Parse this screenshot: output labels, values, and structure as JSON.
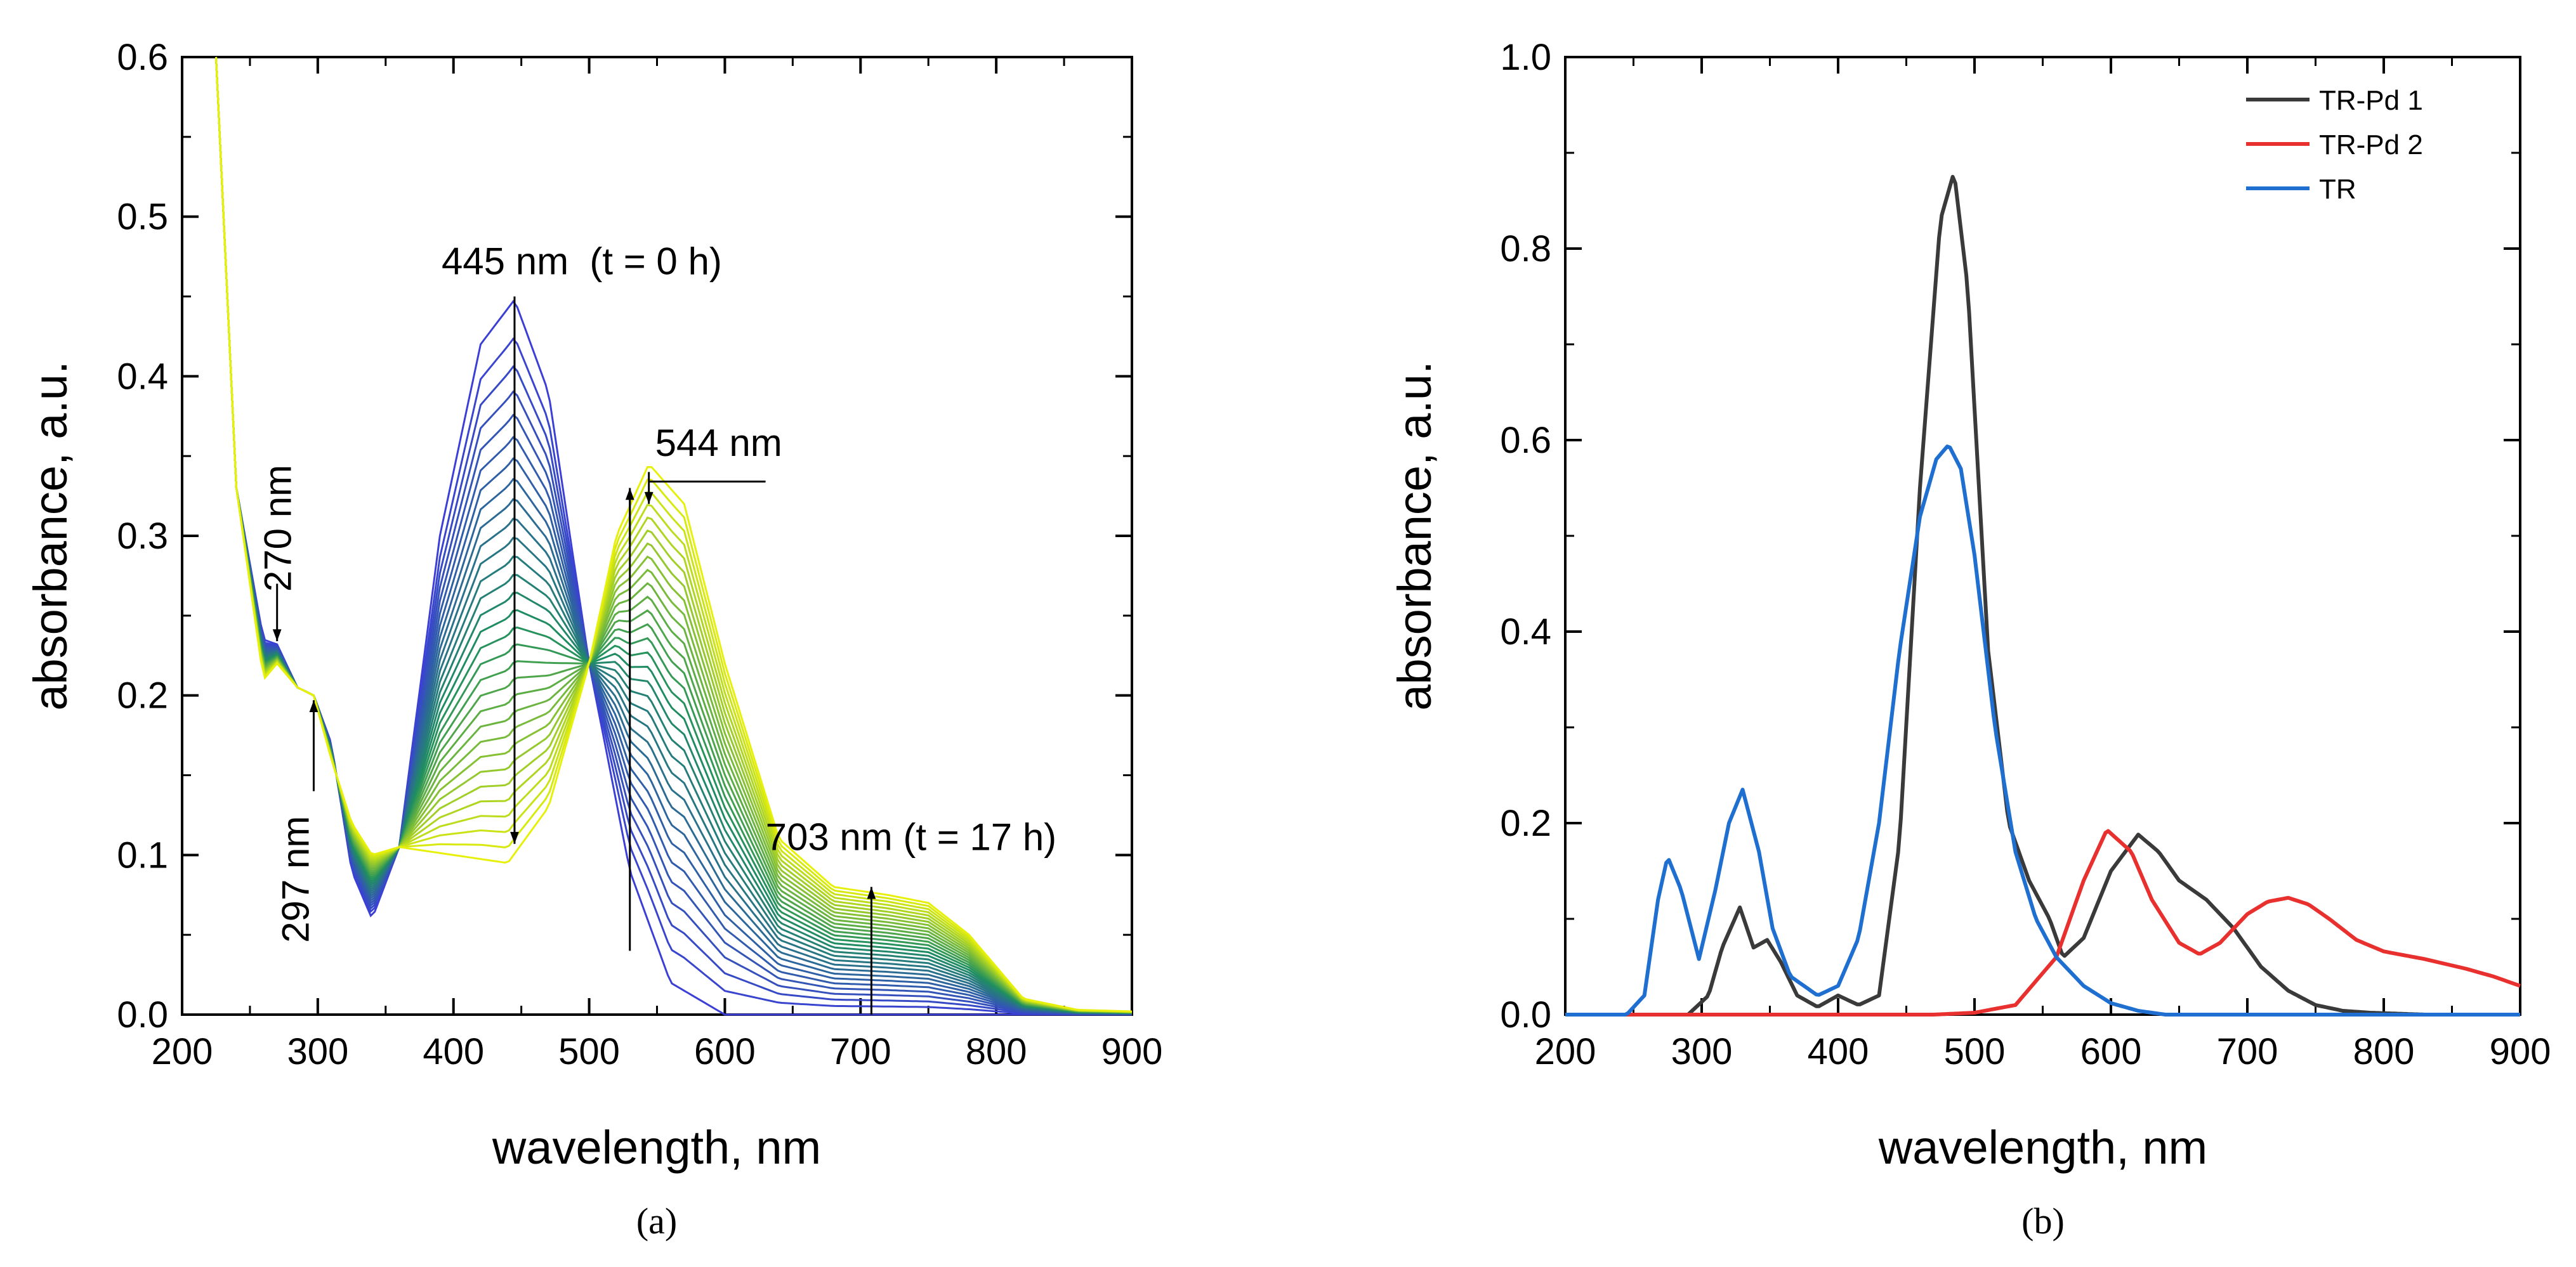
{
  "chart_data": [
    {
      "id": "a",
      "type": "line",
      "caption": "(a)",
      "xlabel": "wavelength, nm",
      "ylabel": "absorbance, a.u.",
      "xlim": [
        200,
        900
      ],
      "ylim": [
        0,
        0.6
      ],
      "xticks": [
        "200",
        "300",
        "400",
        "500",
        "600",
        "700",
        "800",
        "900"
      ],
      "yticks": [
        "0.0",
        "0.1",
        "0.2",
        "0.3",
        "0.4",
        "0.5",
        "0.6"
      ],
      "grid": false,
      "series_count": 30,
      "start_spectrum": {
        "label": "t = 0 h",
        "x": [
          225,
          240,
          260,
          270,
          285,
          297,
          310,
          325,
          340,
          360,
          390,
          420,
          445,
          470,
          500,
          530,
          560,
          600
        ],
        "y": [
          0.6,
          0.33,
          0.235,
          0.232,
          0.205,
          0.2,
          0.17,
          0.09,
          0.06,
          0.105,
          0.3,
          0.42,
          0.448,
          0.39,
          0.22,
          0.09,
          0.02,
          0.0
        ]
      },
      "end_spectrum": {
        "label": "t = 17 h",
        "x": [
          225,
          240,
          260,
          270,
          285,
          297,
          310,
          325,
          340,
          360,
          400,
          440,
          470,
          500,
          520,
          544,
          570,
          600,
          640,
          680,
          720,
          750,
          780,
          820,
          860,
          900
        ],
        "y": [
          0.6,
          0.33,
          0.21,
          0.22,
          0.205,
          0.2,
          0.16,
          0.12,
          0.1,
          0.105,
          0.1,
          0.095,
          0.13,
          0.22,
          0.3,
          0.345,
          0.32,
          0.22,
          0.11,
          0.08,
          0.075,
          0.07,
          0.05,
          0.01,
          0.003,
          0.002
        ]
      },
      "color_start": "#3b3fd6",
      "color_mid": "#1f8f5f",
      "color_end": "#e6f00a",
      "annotations": [
        {
          "text": "445 nm  (t = 0 h)",
          "x": 445,
          "y_from": 0.448,
          "y_to": 0.1,
          "direction": "down"
        },
        {
          "text": "544 nm",
          "x": 544,
          "direction": "down"
        },
        {
          "text": "703 nm (t = 17 h)",
          "x": 703,
          "y_from": 0.0,
          "y_to": 0.078,
          "direction": "up"
        },
        {
          "text": "270 nm",
          "x": 270,
          "direction": "down"
        },
        {
          "text": "297 nm",
          "x": 297,
          "direction": "up"
        }
      ]
    },
    {
      "id": "b",
      "type": "line",
      "caption": "(b)",
      "xlabel": "wavelength, nm",
      "ylabel": "absorbance, a.u.",
      "xlim": [
        200,
        900
      ],
      "ylim": [
        0,
        1.0
      ],
      "xticks": [
        "200",
        "300",
        "400",
        "500",
        "600",
        "700",
        "800",
        "900"
      ],
      "yticks": [
        "0.0",
        "0.2",
        "0.4",
        "0.6",
        "0.8",
        "1.0"
      ],
      "grid": false,
      "legend_position": "top-right",
      "series": [
        {
          "name": "TR-Pd 1",
          "color": "#3a3a3a",
          "x": [
            200,
            290,
            305,
            315,
            328,
            338,
            348,
            358,
            370,
            385,
            400,
            415,
            430,
            445,
            460,
            475,
            485,
            495,
            510,
            525,
            540,
            555,
            565,
            580,
            600,
            620,
            635,
            650,
            670,
            690,
            710,
            730,
            750,
            770,
            790,
            810,
            830,
            900
          ],
          "y": [
            0,
            0,
            0.02,
            0.07,
            0.112,
            0.07,
            0.078,
            0.055,
            0.02,
            0.008,
            0.02,
            0.01,
            0.02,
            0.18,
            0.55,
            0.83,
            0.88,
            0.76,
            0.38,
            0.2,
            0.14,
            0.1,
            0.06,
            0.08,
            0.15,
            0.188,
            0.17,
            0.14,
            0.12,
            0.09,
            0.05,
            0.025,
            0.01,
            0.004,
            0.002,
            0.001,
            0,
            0
          ]
        },
        {
          "name": "TR-Pd 2",
          "color": "#e8302f",
          "x": [
            200,
            470,
            500,
            530,
            560,
            580,
            597,
            615,
            630,
            650,
            665,
            680,
            700,
            715,
            730,
            745,
            760,
            780,
            800,
            830,
            860,
            880,
            900
          ],
          "y": [
            0,
            0,
            0.002,
            0.01,
            0.06,
            0.14,
            0.193,
            0.17,
            0.12,
            0.075,
            0.063,
            0.075,
            0.105,
            0.118,
            0.122,
            0.115,
            0.1,
            0.078,
            0.066,
            0.058,
            0.048,
            0.04,
            0.03
          ]
        },
        {
          "name": "TR",
          "color": "#1f6fd1",
          "x": [
            200,
            245,
            258,
            268,
            275,
            285,
            298,
            310,
            320,
            330,
            342,
            352,
            365,
            385,
            400,
            415,
            430,
            445,
            460,
            472,
            481,
            490,
            500,
            515,
            530,
            545,
            560,
            580,
            600,
            620,
            640,
            900
          ],
          "y": [
            0,
            0,
            0.02,
            0.12,
            0.165,
            0.13,
            0.058,
            0.13,
            0.2,
            0.235,
            0.17,
            0.09,
            0.04,
            0.02,
            0.03,
            0.08,
            0.2,
            0.38,
            0.52,
            0.58,
            0.595,
            0.57,
            0.48,
            0.3,
            0.17,
            0.1,
            0.06,
            0.03,
            0.012,
            0.004,
            0,
            0
          ]
        }
      ]
    }
  ]
}
